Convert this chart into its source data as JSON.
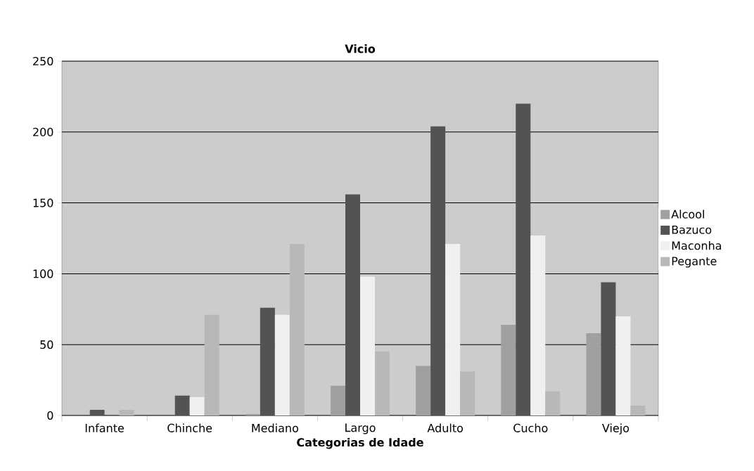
{
  "chart_data": {
    "type": "bar",
    "title": "Vicio",
    "xlabel": "Categorias de Idade",
    "categories": [
      "Infante",
      "Chinche",
      "Mediano",
      "Largo",
      "Adulto",
      "Cucho",
      "Viejo"
    ],
    "series": [
      {
        "name": "Alcool",
        "color": "#a0a0a0",
        "values": [
          0,
          0,
          1,
          21,
          35,
          64,
          58
        ]
      },
      {
        "name": "Bazuco",
        "color": "#535353",
        "values": [
          4,
          14,
          76,
          156,
          204,
          220,
          94
        ]
      },
      {
        "name": "Maconha",
        "color": "#f0f0f0",
        "values": [
          0,
          13,
          71,
          98,
          121,
          127,
          70
        ]
      },
      {
        "name": "Pegante",
        "color": "#b8b8b8",
        "values": [
          4,
          71,
          121,
          45,
          31,
          17,
          7
        ]
      }
    ],
    "ylim": [
      0,
      250
    ],
    "yticks": [
      0,
      50,
      100,
      150,
      200,
      250
    ],
    "grid": "y",
    "legend": "right"
  }
}
